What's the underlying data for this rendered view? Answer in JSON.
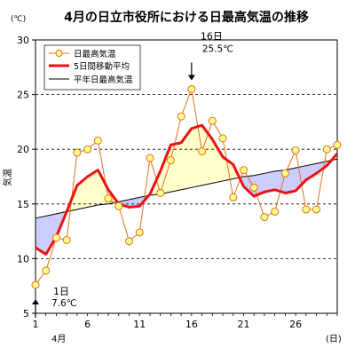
{
  "chart_data": {
    "type": "line",
    "title": "4月の日立市役所における日最高気温の推移",
    "ylabel": "気温",
    "yunit": "(℃)",
    "xunit": "(日)",
    "month_label": "4月",
    "xlim": [
      1,
      30
    ],
    "ylim": [
      5,
      30
    ],
    "grid": true,
    "legend_position": "top-left",
    "x_ticks": [
      1,
      6,
      11,
      16,
      21,
      26
    ],
    "y_ticks": [
      5,
      10,
      15,
      20,
      25,
      30
    ],
    "x": [
      1,
      2,
      3,
      4,
      5,
      6,
      7,
      8,
      9,
      10,
      11,
      12,
      13,
      14,
      15,
      16,
      17,
      18,
      19,
      20,
      21,
      22,
      23,
      24,
      25,
      26,
      27,
      28,
      29,
      30
    ],
    "series": [
      {
        "name": "日最高気温",
        "color": "#e07020",
        "marker_fill": "#ffff88",
        "values": [
          7.6,
          8.9,
          11.9,
          11.7,
          19.7,
          20.0,
          20.8,
          15.5,
          14.8,
          11.6,
          12.4,
          19.2,
          16.0,
          19.0,
          23.0,
          25.5,
          19.8,
          22.6,
          21.0,
          15.6,
          18.1,
          16.5,
          13.8,
          14.3,
          17.8,
          19.9,
          14.5,
          14.5,
          20.0,
          20.4
        ]
      },
      {
        "name": "5日間移動平均",
        "color": "#ee1111",
        "values": [
          11.0,
          10.4,
          12.0,
          14.3,
          16.7,
          17.5,
          18.1,
          16.3,
          15.0,
          14.7,
          14.8,
          15.9,
          18.0,
          20.4,
          20.6,
          21.9,
          22.2,
          20.9,
          19.3,
          18.6,
          16.6,
          15.7,
          16.1,
          16.3,
          16.0,
          16.2,
          17.2,
          17.8,
          18.5,
          19.6
        ]
      },
      {
        "name": "平年日最高気温",
        "color": "#000000",
        "values": [
          13.7,
          13.9,
          14.1,
          14.3,
          14.5,
          14.7,
          14.9,
          15.0,
          15.2,
          15.4,
          15.6,
          15.8,
          15.9,
          16.1,
          16.3,
          16.5,
          16.7,
          16.9,
          17.1,
          17.3,
          17.5,
          17.6,
          17.8,
          18.0,
          18.1,
          18.3,
          18.5,
          18.7,
          18.9,
          19.1
        ]
      }
    ],
    "fill_above_normal": "#ffffcc",
    "fill_below_normal": "#ccccff",
    "annotations": [
      {
        "x": 16,
        "y": 25.5,
        "text1": "16日",
        "text2": "25.5℃",
        "position": "above"
      },
      {
        "x": 1,
        "y": 7.6,
        "text1": "1日",
        "text2": "7.6℃",
        "position": "below"
      }
    ]
  }
}
